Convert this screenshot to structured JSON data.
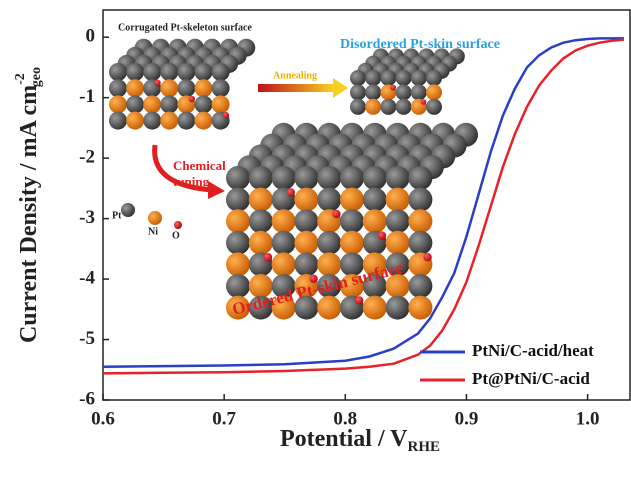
{
  "chart_data": {
    "type": "line",
    "xlabel": "Potential / V",
    "xlabel_sub": "RHE",
    "ylabel": "Current Density / mA cm",
    "ylabel_sup": "-2",
    "ylabel_sub": "geo",
    "x": [
      0.6,
      0.65,
      0.7,
      0.75,
      0.8,
      0.82,
      0.84,
      0.86,
      0.87,
      0.88,
      0.89,
      0.9,
      0.91,
      0.92,
      0.93,
      0.94,
      0.95,
      0.96,
      0.97,
      0.98,
      0.99,
      1.0,
      1.01,
      1.02,
      1.03
    ],
    "series": [
      {
        "name": "PtNi/C-acid/heat",
        "color": "#2b3fc4",
        "values": [
          -5.45,
          -5.44,
          -5.43,
          -5.41,
          -5.35,
          -5.28,
          -5.15,
          -4.9,
          -4.65,
          -4.3,
          -3.9,
          -3.3,
          -2.6,
          -1.9,
          -1.3,
          -0.85,
          -0.5,
          -0.3,
          -0.17,
          -0.09,
          -0.05,
          -0.03,
          -0.02,
          -0.02,
          -0.02
        ]
      },
      {
        "name": "Pt@PtNi/C-acid",
        "color": "#e8222b",
        "values": [
          -5.56,
          -5.55,
          -5.54,
          -5.52,
          -5.48,
          -5.45,
          -5.4,
          -5.25,
          -5.1,
          -4.85,
          -4.5,
          -4.05,
          -3.45,
          -2.8,
          -2.15,
          -1.6,
          -1.15,
          -0.8,
          -0.55,
          -0.35,
          -0.22,
          -0.14,
          -0.09,
          -0.06,
          -0.04
        ]
      }
    ],
    "xlim": [
      0.6,
      1.035
    ],
    "xticks": [
      0.6,
      0.7,
      0.8,
      0.9,
      {
        "value": 1,
        "label": "1.0"
      }
    ],
    "ylim": [
      -6,
      0.45
    ],
    "yticks": [
      0,
      -1,
      -2,
      -3,
      -4,
      -5,
      -6
    ],
    "legend": "lower right",
    "annotations": [
      "Corrugated Pt-skeleton surface",
      "Disordered Pt-skin surface",
      "Annealing",
      "Chemical",
      "tuning",
      "Ordered Pt-skin surface",
      "Pt",
      "Ni",
      "O"
    ]
  }
}
